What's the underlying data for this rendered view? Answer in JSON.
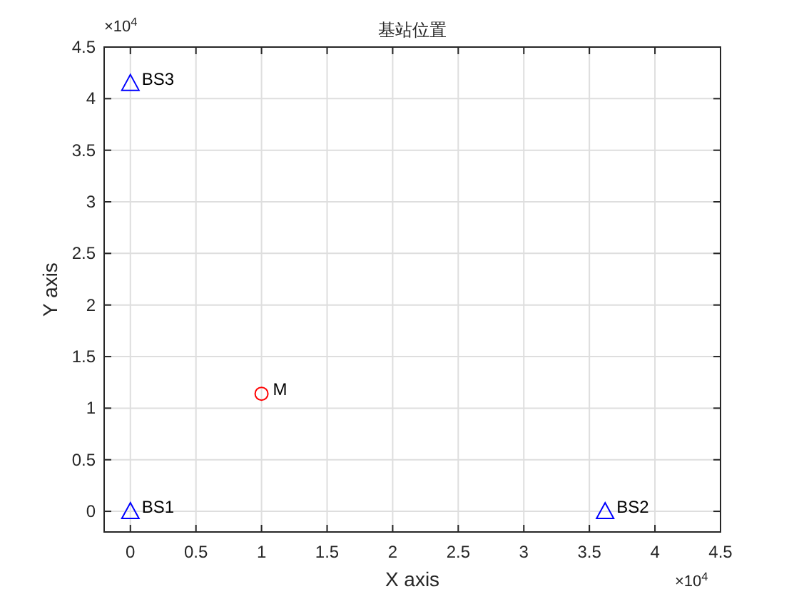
{
  "chart_data": {
    "type": "scatter",
    "title": "基站位置",
    "xlabel": "X axis",
    "ylabel": "Y axis",
    "xlim": [
      -0.2,
      4.5
    ],
    "ylim": [
      -0.2,
      4.5
    ],
    "xticks": [
      0,
      0.5,
      1,
      1.5,
      2,
      2.5,
      3,
      3.5,
      4,
      4.5
    ],
    "yticks": [
      0,
      0.5,
      1,
      1.5,
      2,
      2.5,
      3,
      3.5,
      4,
      4.5
    ],
    "grid": true,
    "series": [
      {
        "color": "#0000ff",
        "marker": "triangle",
        "x": [
          0,
          3.62,
          0
        ],
        "values": [
          0,
          0,
          4.15
        ]
      },
      {
        "color": "#ff0000",
        "marker": "circle",
        "x": [
          1
        ],
        "values": [
          1.14
        ]
      }
    ],
    "annotations": [
      {
        "text": "BS1",
        "x": 0,
        "y": 0
      },
      {
        "text": "BS2",
        "x": 3.62,
        "y": 0
      },
      {
        "text": "BS3",
        "x": 0,
        "y": 4.15
      },
      {
        "text": "M",
        "x": 1,
        "y": 1.14
      },
      "×10$^{4}$",
      "×10$^{4}$"
    ]
  }
}
